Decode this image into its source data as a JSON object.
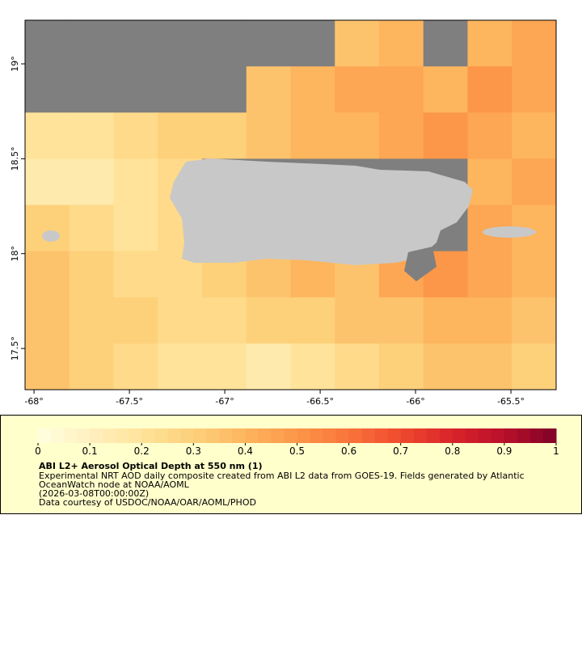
{
  "map": {
    "xlim": [
      -68.047,
      -65.263
    ],
    "ylim": [
      17.283,
      19.23
    ],
    "xticks": [
      {
        "value": -68,
        "label": "-68°"
      },
      {
        "value": -67.5,
        "label": "-67.5°"
      },
      {
        "value": -67,
        "label": "-67°"
      },
      {
        "value": -66.5,
        "label": "-66.5°"
      },
      {
        "value": -66,
        "label": "-66°"
      },
      {
        "value": -65.5,
        "label": "-65.5°"
      }
    ],
    "yticks": [
      {
        "value": 19,
        "label": "19°"
      },
      {
        "value": 18.5,
        "label": "18.5°"
      },
      {
        "value": 18,
        "label": "18°"
      },
      {
        "value": 17.5,
        "label": "17.5°"
      }
    ],
    "grid": [
      [
        null,
        null,
        null,
        null,
        null,
        null,
        null,
        0.35,
        0.4,
        null,
        0.4,
        0.45
      ],
      [
        null,
        null,
        null,
        null,
        null,
        0.35,
        0.4,
        0.45,
        0.45,
        0.4,
        0.5,
        0.45
      ],
      [
        0.2,
        0.2,
        0.25,
        0.3,
        0.3,
        0.35,
        0.4,
        0.4,
        0.45,
        0.5,
        0.45,
        0.4
      ],
      [
        0.15,
        0.15,
        0.2,
        0.25,
        null,
        null,
        null,
        null,
        null,
        null,
        0.4,
        0.45
      ],
      [
        0.3,
        0.25,
        0.2,
        0.25,
        null,
        null,
        null,
        null,
        null,
        null,
        0.45,
        0.4
      ],
      [
        0.35,
        0.3,
        0.25,
        0.25,
        0.3,
        0.35,
        0.4,
        0.35,
        0.45,
        0.5,
        0.45,
        0.4
      ],
      [
        0.35,
        0.3,
        0.3,
        0.25,
        0.25,
        0.3,
        0.3,
        0.35,
        0.35,
        0.4,
        0.4,
        0.35
      ],
      [
        0.35,
        0.3,
        0.25,
        0.2,
        0.2,
        0.15,
        0.2,
        0.25,
        0.3,
        0.35,
        0.35,
        0.3
      ]
    ]
  },
  "colorbar": {
    "lim": [
      0,
      1
    ],
    "ticks": [
      0,
      0.1,
      0.2,
      0.3,
      0.4,
      0.5,
      0.6,
      0.7,
      0.8,
      0.9,
      1
    ],
    "colors": [
      "#ffffe0",
      "#fff0c0",
      "#ffe39a",
      "#fdd07a",
      "#fdb55e",
      "#fc9648",
      "#f9743a",
      "#ef4a2e",
      "#d9232a",
      "#b8102b",
      "#7f0226"
    ]
  },
  "legend": {
    "title": "ABI L2+ Aerosol Optical Depth at 550 nm (1)",
    "lines": [
      "Experimental NRT AOD daily composite created from ABI L2 data from GOES-19. Fields generated by Atlantic",
      "OceanWatch node at NOAA/AOML",
      "(2026-03-08T00:00:00Z)",
      "Data courtesy of USDOC/NOAA/OAR/AOML/PHOD"
    ]
  }
}
